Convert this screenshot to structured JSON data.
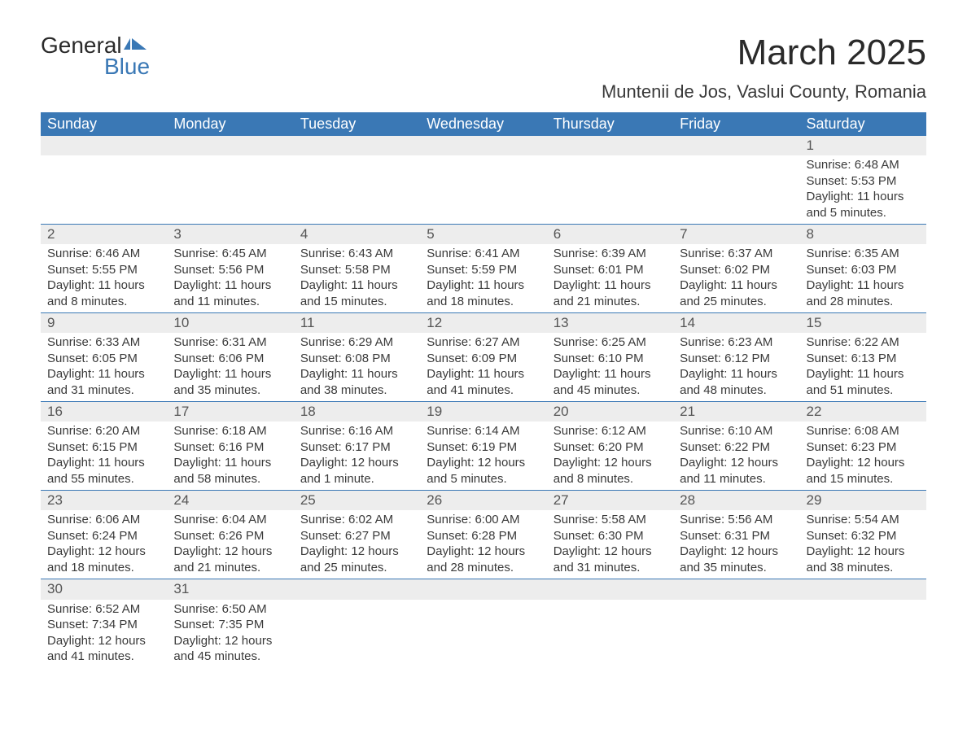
{
  "logo": {
    "text1": "General",
    "text2": "Blue"
  },
  "title": "March 2025",
  "location": "Muntenii de Jos, Vaslui County, Romania",
  "day_headers": [
    "Sunday",
    "Monday",
    "Tuesday",
    "Wednesday",
    "Thursday",
    "Friday",
    "Saturday"
  ],
  "colors": {
    "header_bg": "#3a78b5",
    "header_text": "#ffffff",
    "daynum_bg": "#ededed",
    "row_border": "#3a78b5",
    "body_text": "#3a3a3a",
    "logo_blue": "#3a78b5"
  },
  "weeks": [
    [
      null,
      null,
      null,
      null,
      null,
      null,
      {
        "n": "1",
        "sr": "Sunrise: 6:48 AM",
        "ss": "Sunset: 5:53 PM",
        "dl": "Daylight: 11 hours and 5 minutes."
      }
    ],
    [
      {
        "n": "2",
        "sr": "Sunrise: 6:46 AM",
        "ss": "Sunset: 5:55 PM",
        "dl": "Daylight: 11 hours and 8 minutes."
      },
      {
        "n": "3",
        "sr": "Sunrise: 6:45 AM",
        "ss": "Sunset: 5:56 PM",
        "dl": "Daylight: 11 hours and 11 minutes."
      },
      {
        "n": "4",
        "sr": "Sunrise: 6:43 AM",
        "ss": "Sunset: 5:58 PM",
        "dl": "Daylight: 11 hours and 15 minutes."
      },
      {
        "n": "5",
        "sr": "Sunrise: 6:41 AM",
        "ss": "Sunset: 5:59 PM",
        "dl": "Daylight: 11 hours and 18 minutes."
      },
      {
        "n": "6",
        "sr": "Sunrise: 6:39 AM",
        "ss": "Sunset: 6:01 PM",
        "dl": "Daylight: 11 hours and 21 minutes."
      },
      {
        "n": "7",
        "sr": "Sunrise: 6:37 AM",
        "ss": "Sunset: 6:02 PM",
        "dl": "Daylight: 11 hours and 25 minutes."
      },
      {
        "n": "8",
        "sr": "Sunrise: 6:35 AM",
        "ss": "Sunset: 6:03 PM",
        "dl": "Daylight: 11 hours and 28 minutes."
      }
    ],
    [
      {
        "n": "9",
        "sr": "Sunrise: 6:33 AM",
        "ss": "Sunset: 6:05 PM",
        "dl": "Daylight: 11 hours and 31 minutes."
      },
      {
        "n": "10",
        "sr": "Sunrise: 6:31 AM",
        "ss": "Sunset: 6:06 PM",
        "dl": "Daylight: 11 hours and 35 minutes."
      },
      {
        "n": "11",
        "sr": "Sunrise: 6:29 AM",
        "ss": "Sunset: 6:08 PM",
        "dl": "Daylight: 11 hours and 38 minutes."
      },
      {
        "n": "12",
        "sr": "Sunrise: 6:27 AM",
        "ss": "Sunset: 6:09 PM",
        "dl": "Daylight: 11 hours and 41 minutes."
      },
      {
        "n": "13",
        "sr": "Sunrise: 6:25 AM",
        "ss": "Sunset: 6:10 PM",
        "dl": "Daylight: 11 hours and 45 minutes."
      },
      {
        "n": "14",
        "sr": "Sunrise: 6:23 AM",
        "ss": "Sunset: 6:12 PM",
        "dl": "Daylight: 11 hours and 48 minutes."
      },
      {
        "n": "15",
        "sr": "Sunrise: 6:22 AM",
        "ss": "Sunset: 6:13 PM",
        "dl": "Daylight: 11 hours and 51 minutes."
      }
    ],
    [
      {
        "n": "16",
        "sr": "Sunrise: 6:20 AM",
        "ss": "Sunset: 6:15 PM",
        "dl": "Daylight: 11 hours and 55 minutes."
      },
      {
        "n": "17",
        "sr": "Sunrise: 6:18 AM",
        "ss": "Sunset: 6:16 PM",
        "dl": "Daylight: 11 hours and 58 minutes."
      },
      {
        "n": "18",
        "sr": "Sunrise: 6:16 AM",
        "ss": "Sunset: 6:17 PM",
        "dl": "Daylight: 12 hours and 1 minute."
      },
      {
        "n": "19",
        "sr": "Sunrise: 6:14 AM",
        "ss": "Sunset: 6:19 PM",
        "dl": "Daylight: 12 hours and 5 minutes."
      },
      {
        "n": "20",
        "sr": "Sunrise: 6:12 AM",
        "ss": "Sunset: 6:20 PM",
        "dl": "Daylight: 12 hours and 8 minutes."
      },
      {
        "n": "21",
        "sr": "Sunrise: 6:10 AM",
        "ss": "Sunset: 6:22 PM",
        "dl": "Daylight: 12 hours and 11 minutes."
      },
      {
        "n": "22",
        "sr": "Sunrise: 6:08 AM",
        "ss": "Sunset: 6:23 PM",
        "dl": "Daylight: 12 hours and 15 minutes."
      }
    ],
    [
      {
        "n": "23",
        "sr": "Sunrise: 6:06 AM",
        "ss": "Sunset: 6:24 PM",
        "dl": "Daylight: 12 hours and 18 minutes."
      },
      {
        "n": "24",
        "sr": "Sunrise: 6:04 AM",
        "ss": "Sunset: 6:26 PM",
        "dl": "Daylight: 12 hours and 21 minutes."
      },
      {
        "n": "25",
        "sr": "Sunrise: 6:02 AM",
        "ss": "Sunset: 6:27 PM",
        "dl": "Daylight: 12 hours and 25 minutes."
      },
      {
        "n": "26",
        "sr": "Sunrise: 6:00 AM",
        "ss": "Sunset: 6:28 PM",
        "dl": "Daylight: 12 hours and 28 minutes."
      },
      {
        "n": "27",
        "sr": "Sunrise: 5:58 AM",
        "ss": "Sunset: 6:30 PM",
        "dl": "Daylight: 12 hours and 31 minutes."
      },
      {
        "n": "28",
        "sr": "Sunrise: 5:56 AM",
        "ss": "Sunset: 6:31 PM",
        "dl": "Daylight: 12 hours and 35 minutes."
      },
      {
        "n": "29",
        "sr": "Sunrise: 5:54 AM",
        "ss": "Sunset: 6:32 PM",
        "dl": "Daylight: 12 hours and 38 minutes."
      }
    ],
    [
      {
        "n": "30",
        "sr": "Sunrise: 6:52 AM",
        "ss": "Sunset: 7:34 PM",
        "dl": "Daylight: 12 hours and 41 minutes."
      },
      {
        "n": "31",
        "sr": "Sunrise: 6:50 AM",
        "ss": "Sunset: 7:35 PM",
        "dl": "Daylight: 12 hours and 45 minutes."
      },
      null,
      null,
      null,
      null,
      null
    ]
  ]
}
